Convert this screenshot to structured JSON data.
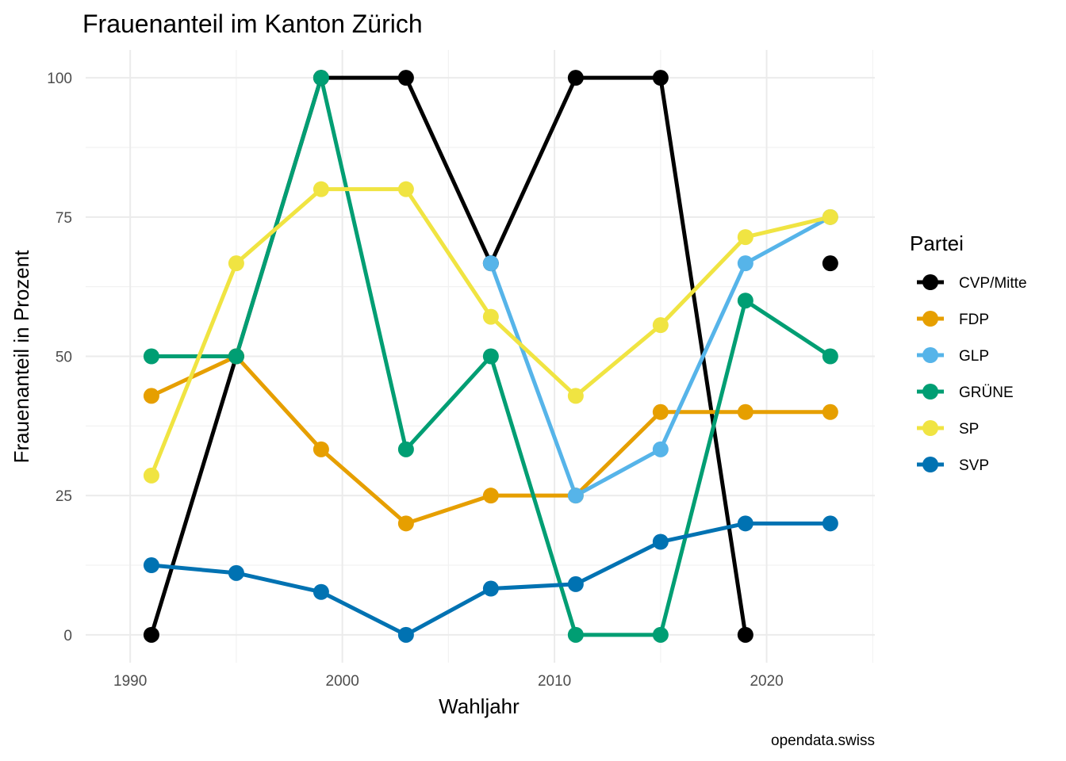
{
  "chart_data": {
    "type": "line",
    "title": "Frauenanteil im Kanton Zürich",
    "xlabel": "Wahljahr",
    "ylabel": "Frauenanteil in Prozent",
    "caption": "opendata.swiss",
    "legend_title": "Partei",
    "legend_position": "right",
    "grid": true,
    "xlim": [
      1987.9,
      2025.1
    ],
    "ylim": [
      -5,
      105
    ],
    "x_ticks": [
      1990,
      2000,
      2010,
      2020
    ],
    "x_tick_labels": [
      "1990",
      "2000",
      "2010",
      "2020"
    ],
    "y_ticks": [
      0,
      25,
      50,
      75,
      100
    ],
    "y_tick_labels": [
      "0",
      "25",
      "50",
      "75",
      "100"
    ],
    "x": [
      1991,
      1995,
      1999,
      2003,
      2007,
      2011,
      2015,
      2019,
      2023
    ],
    "series": [
      {
        "name": "CVP/Mitte",
        "color": "#000000",
        "values": [
          0,
          50,
          100,
          100,
          66.7,
          100,
          100,
          0,
          66.7
        ]
      },
      {
        "name": "FDP",
        "color": "#E69F00",
        "values": [
          42.9,
          50,
          33.3,
          20,
          25,
          25,
          40,
          40,
          40
        ]
      },
      {
        "name": "GLP",
        "color": "#56B4E9",
        "values": [
          null,
          null,
          null,
          null,
          66.7,
          25,
          33.3,
          66.7,
          75
        ]
      },
      {
        "name": "GRÜNE",
        "color": "#009E73",
        "values": [
          50,
          50,
          100,
          33.3,
          50,
          0,
          0,
          60,
          50
        ]
      },
      {
        "name": "SP",
        "color": "#F0E442",
        "values": [
          28.6,
          66.7,
          80,
          80,
          57.1,
          42.9,
          55.6,
          71.4,
          75
        ]
      },
      {
        "name": "SVP",
        "color": "#0072B2",
        "values": [
          12.5,
          11.1,
          7.7,
          0,
          8.3,
          9.1,
          16.7,
          20,
          20
        ]
      }
    ],
    "line_breaks": {
      "CVP/Mitte": [
        [
          1,
          0
        ]
      ]
    }
  }
}
